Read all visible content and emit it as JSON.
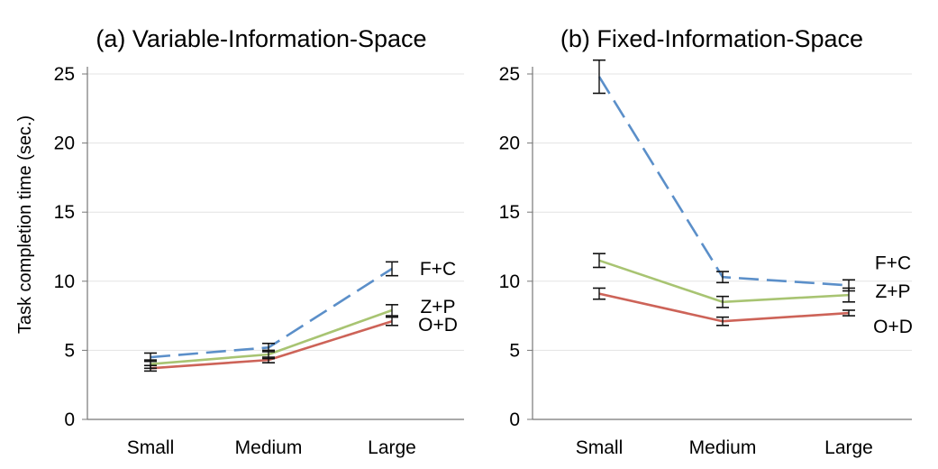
{
  "y_axis_label": "Task completion time (sec.)",
  "chart_data": [
    {
      "type": "line",
      "title": "(a) Variable-Information-Space",
      "xlabel": "",
      "ylabel": "Task completion time (sec.)",
      "categories": [
        "Small",
        "Medium",
        "Large"
      ],
      "ylim": [
        0,
        25
      ],
      "yticks": [
        0,
        5,
        10,
        15,
        20,
        25
      ],
      "grid": true,
      "series": [
        {
          "name": "F+C",
          "values": [
            4.5,
            5.2,
            10.9
          ],
          "err": [
            0.3,
            0.3,
            0.5
          ],
          "color": "#5b8fc9",
          "dash": true
        },
        {
          "name": "Z+P",
          "values": [
            4.0,
            4.7,
            7.9
          ],
          "err": [
            0.3,
            0.3,
            0.4
          ],
          "color": "#a8c472",
          "dash": false
        },
        {
          "name": "O+D",
          "values": [
            3.7,
            4.3,
            7.1
          ],
          "err": [
            0.2,
            0.2,
            0.3
          ],
          "color": "#cd6358",
          "dash": false
        }
      ]
    },
    {
      "type": "line",
      "title": "(b) Fixed-Information-Space",
      "xlabel": "",
      "ylabel": "",
      "categories": [
        "Small",
        "Medium",
        "Large"
      ],
      "ylim": [
        0,
        25
      ],
      "yticks": [
        0,
        5,
        10,
        15,
        20,
        25
      ],
      "grid": true,
      "series": [
        {
          "name": "F+C",
          "values": [
            24.8,
            10.3,
            9.7
          ],
          "err": [
            1.2,
            0.4,
            0.4
          ],
          "color": "#5b8fc9",
          "dash": true
        },
        {
          "name": "Z+P",
          "values": [
            11.5,
            8.5,
            9.0
          ],
          "err": [
            0.5,
            0.4,
            0.5
          ],
          "color": "#a8c472",
          "dash": false
        },
        {
          "name": "O+D",
          "values": [
            9.1,
            7.1,
            7.7
          ],
          "err": [
            0.4,
            0.3,
            0.2
          ],
          "color": "#cd6358",
          "dash": false
        }
      ]
    }
  ]
}
